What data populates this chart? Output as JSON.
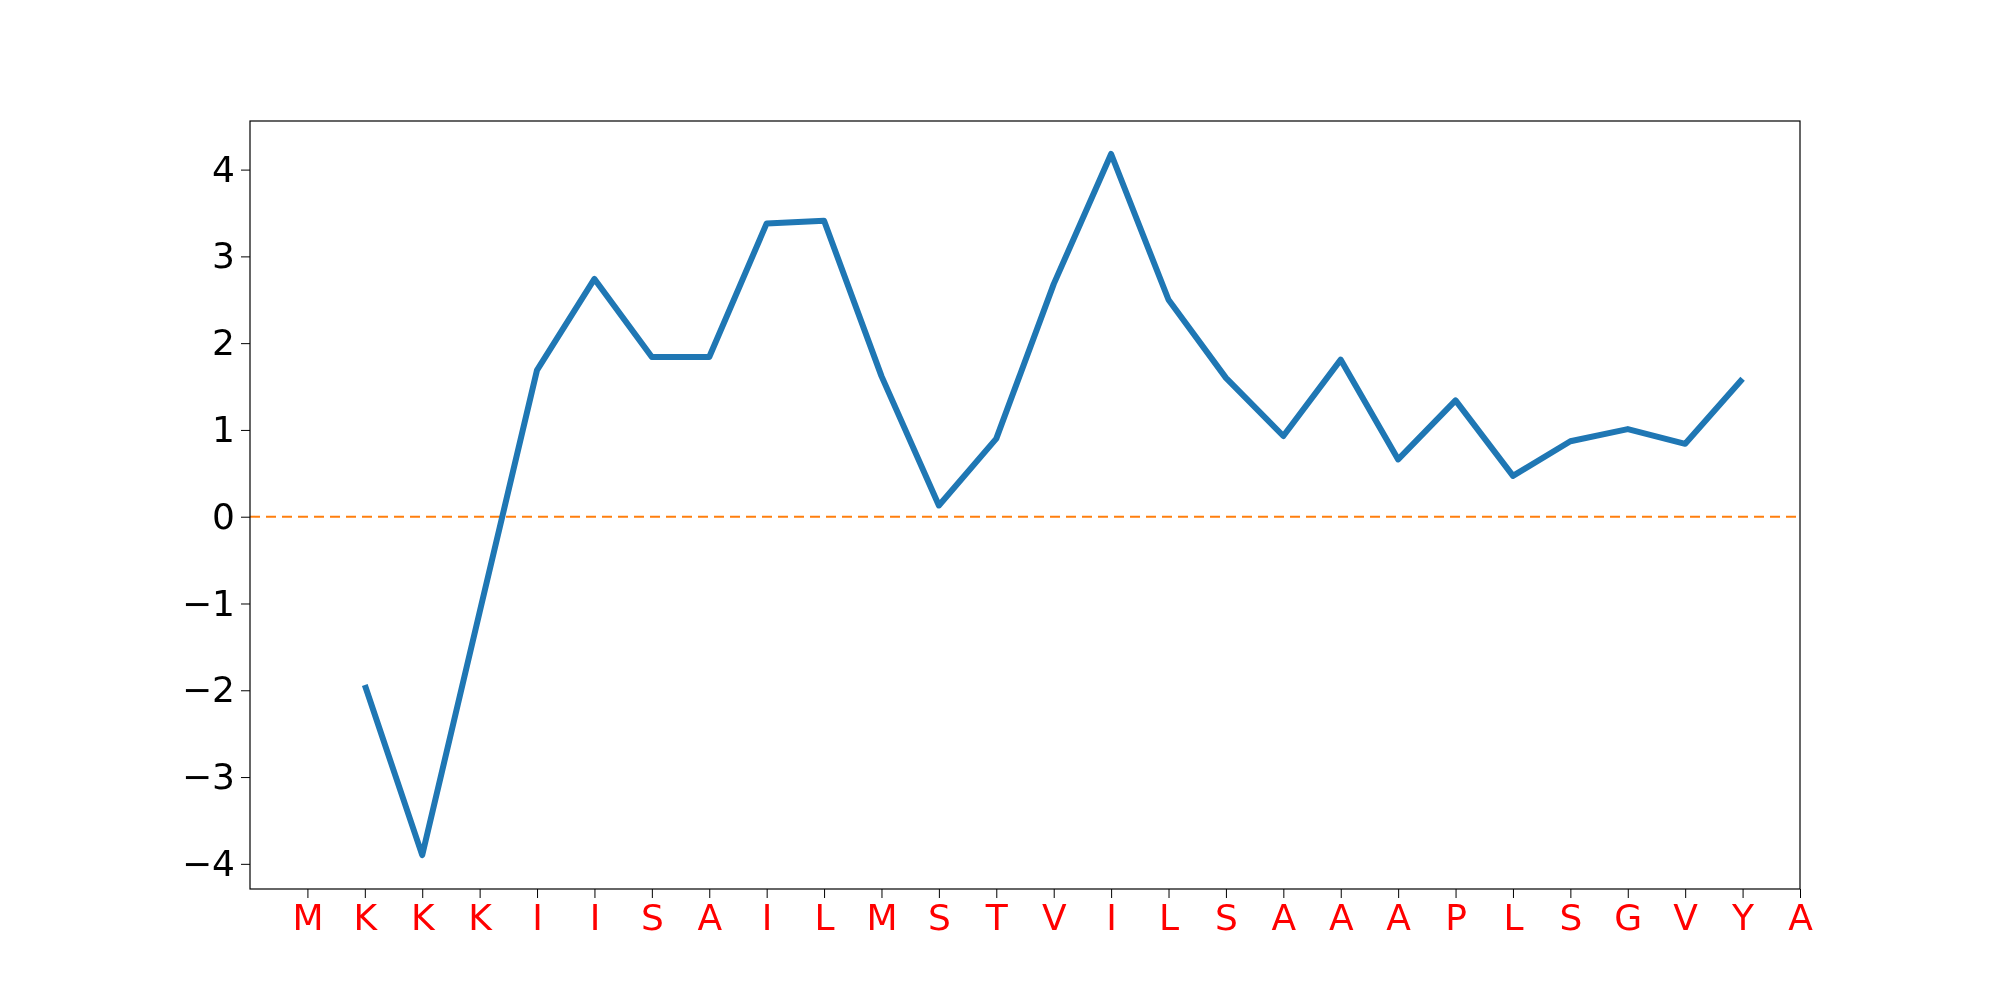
{
  "chart_data": {
    "type": "line",
    "categories": [
      "M",
      "K",
      "K",
      "K",
      "I",
      "I",
      "S",
      "A",
      "I",
      "L",
      "M",
      "S",
      "T",
      "V",
      "I",
      "L",
      "S",
      "A",
      "A",
      "A",
      "P",
      "L",
      "S",
      "G",
      "V",
      "Y",
      "A"
    ],
    "series": [
      {
        "color": "#1f77b4",
        "values": [
          null,
          -1.94,
          -3.9,
          -1.1,
          1.69,
          2.74,
          1.84,
          1.84,
          3.38,
          3.41,
          1.62,
          0.13,
          0.9,
          2.68,
          4.18,
          2.5,
          1.6,
          0.93,
          1.81,
          0.66,
          1.34,
          0.47,
          0.87,
          1.01,
          0.84,
          1.59,
          null
        ]
      }
    ],
    "ylim": [
      -4.29,
      4.56
    ],
    "yticks": [
      {
        "value": -4,
        "label": "−4"
      },
      {
        "value": -3,
        "label": "−3"
      },
      {
        "value": -2,
        "label": "−2"
      },
      {
        "value": -1,
        "label": "−1"
      },
      0,
      1,
      2,
      3,
      4
    ],
    "ref_lines": [
      {
        "axis": "y",
        "value": 0,
        "color": "#ff7f0e",
        "line_style": "dashed"
      }
    ],
    "grid": false,
    "marker": "none",
    "line_style": "solid"
  }
}
